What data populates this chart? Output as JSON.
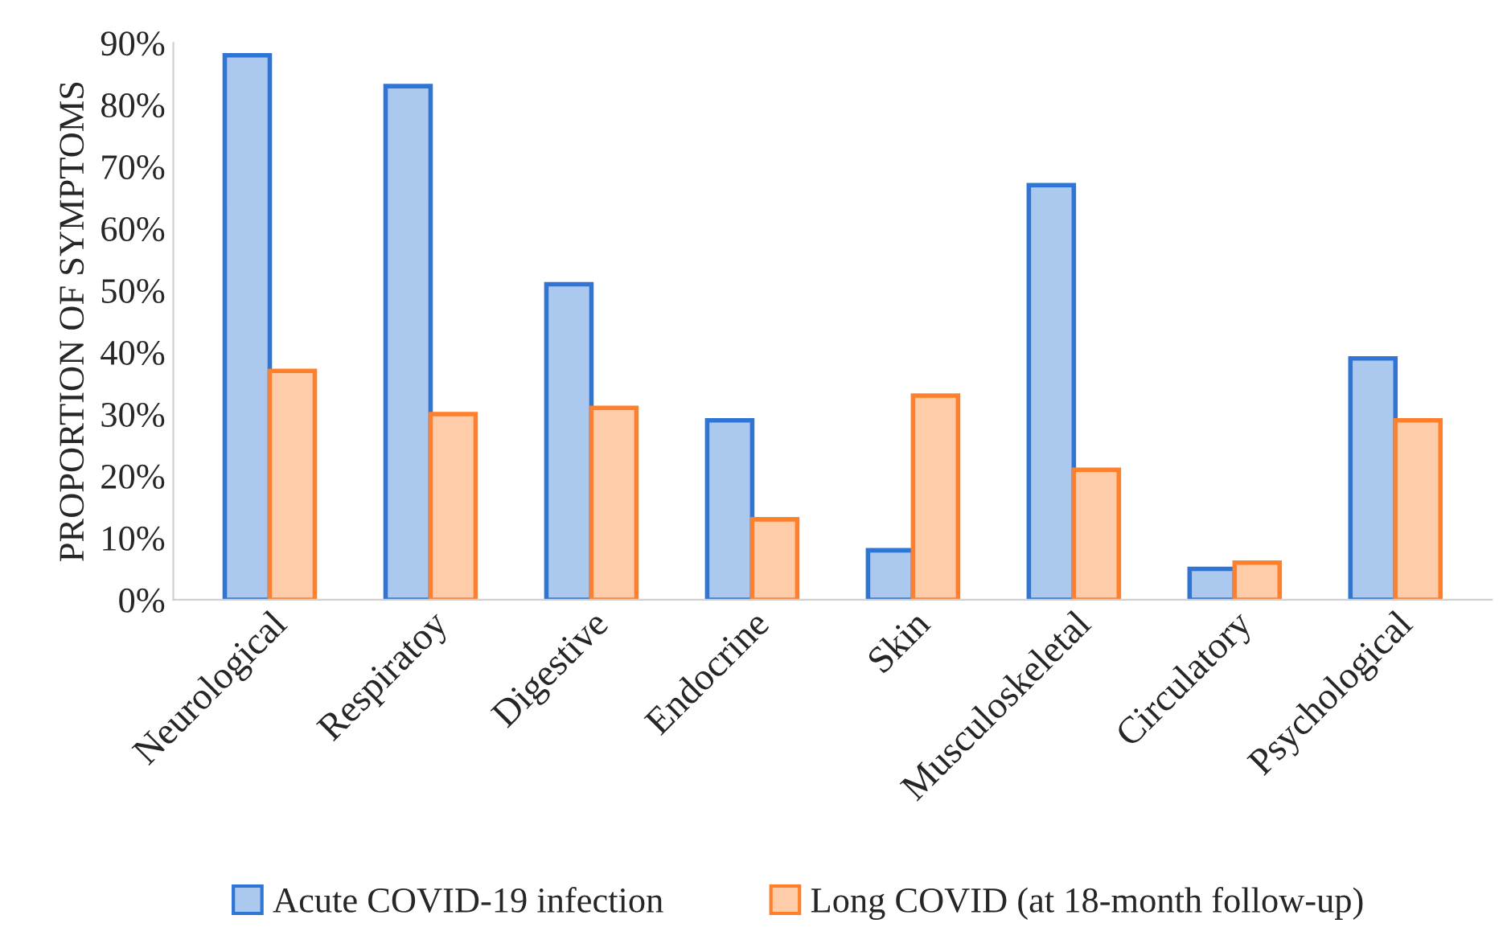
{
  "chart_data": {
    "type": "bar",
    "ylabel": "PROPORTION OF SYMPTOMS",
    "categories": [
      "Neurological",
      "Respiratoy",
      "Digestive",
      "Endocrine",
      "Skin",
      "Musculoskeletal",
      "Circulatory",
      "Psychological"
    ],
    "series": [
      {
        "name": "Acute COVID-19 infection",
        "color": "#2e75d6",
        "values": [
          88,
          83,
          51,
          29,
          8,
          67,
          5,
          39
        ]
      },
      {
        "name": "Long COVID (at 18-month follow-up)",
        "color": "#ff7f2a",
        "values": [
          37,
          30,
          31,
          13,
          33,
          21,
          6,
          29
        ]
      }
    ],
    "ylim": [
      0,
      90
    ],
    "yticks": [
      {
        "value": 0,
        "label": "0%"
      },
      {
        "value": 10,
        "label": "10%"
      },
      {
        "value": 20,
        "label": "20%"
      },
      {
        "value": 30,
        "label": "30%"
      },
      {
        "value": 40,
        "label": "40%"
      },
      {
        "value": 50,
        "label": "50%"
      },
      {
        "value": 60,
        "label": "60%"
      },
      {
        "value": 70,
        "label": "70%"
      },
      {
        "value": 80,
        "label": "80%"
      },
      {
        "value": 90,
        "label": "90%"
      }
    ],
    "grid": false,
    "legend": "bottom"
  }
}
